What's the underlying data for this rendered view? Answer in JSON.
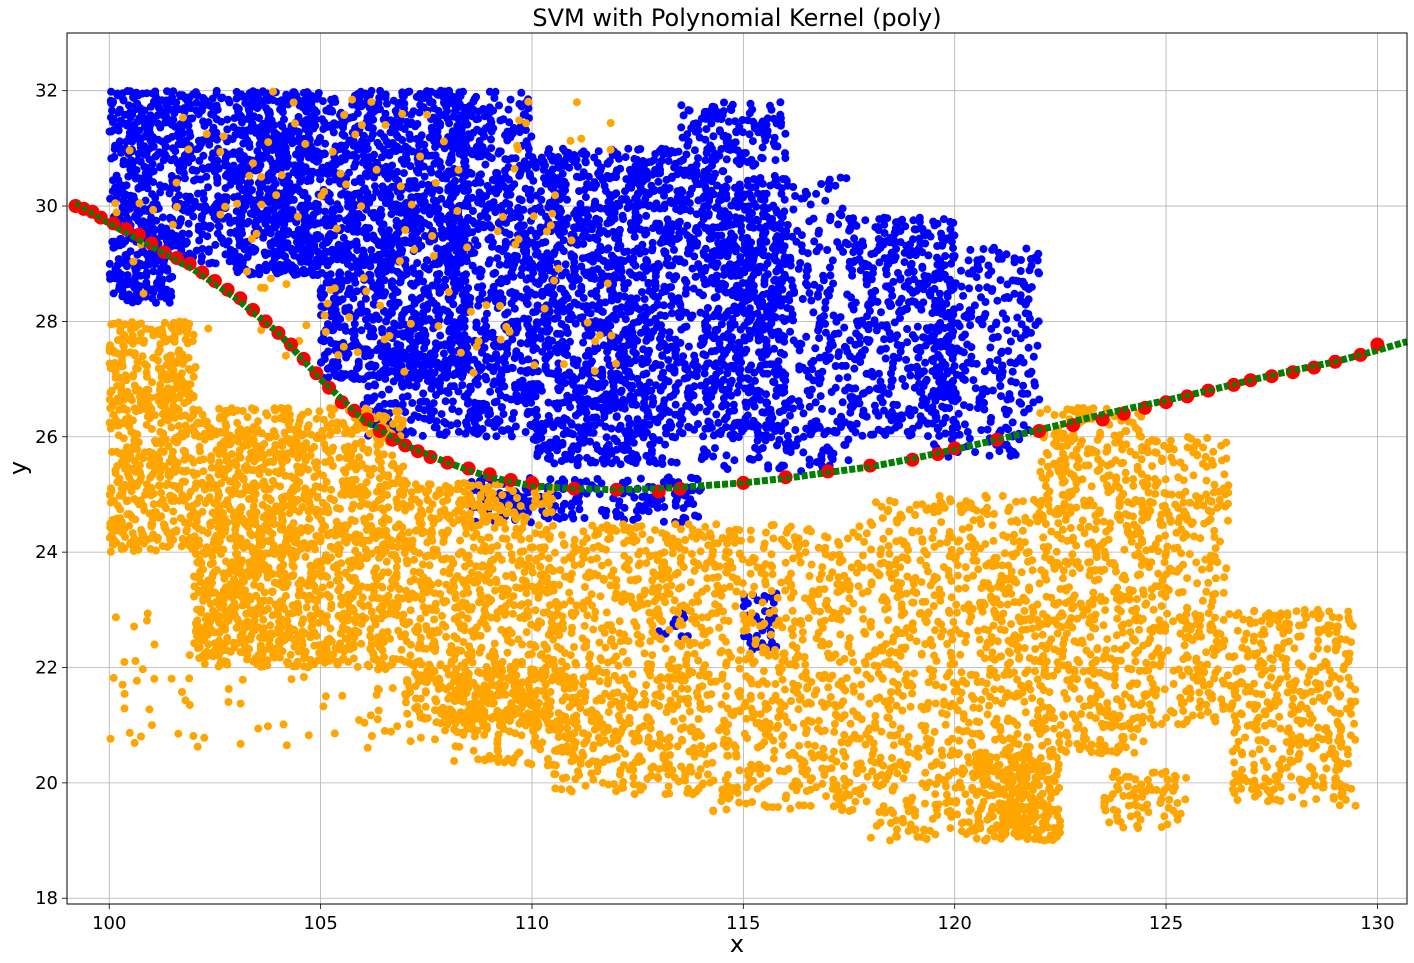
{
  "chart_data": {
    "type": "scatter",
    "title": "SVM with Polynomial Kernel (poly)",
    "xlabel": "x",
    "ylabel": "y",
    "xlim": [
      99.0,
      130.7
    ],
    "ylim": [
      17.9,
      33.0
    ],
    "xticks": [
      100,
      105,
      110,
      115,
      120,
      125,
      130
    ],
    "yticks": [
      18,
      20,
      22,
      24,
      26,
      28,
      30,
      32
    ],
    "grid": true,
    "colors": {
      "class_1": "#0000ff",
      "class_0": "#ffa500",
      "boundary": "#008000",
      "support_points": "#ff0000"
    },
    "series": [
      {
        "role": "class_1",
        "color": "#0000ff",
        "regions": [
          {
            "x": [
              100.0,
              101.5
            ],
            "y": [
              28.3,
              32.0
            ],
            "n": 450
          },
          {
            "x": [
              101.5,
              103.0
            ],
            "y": [
              29.0,
              32.0
            ],
            "n": 300
          },
          {
            "x": [
              103.0,
              105.0
            ],
            "y": [
              28.8,
              32.0
            ],
            "n": 650
          },
          {
            "x": [
              105.0,
              108.5
            ],
            "y": [
              27.0,
              32.0
            ],
            "n": 1300
          },
          {
            "x": [
              106.0,
              108.0
            ],
            "y": [
              26.0,
              27.5
            ],
            "n": 150
          },
          {
            "x": [
              108.0,
              110.0
            ],
            "y": [
              26.0,
              32.0
            ],
            "n": 650
          },
          {
            "x": [
              110.0,
              113.5
            ],
            "y": [
              25.5,
              31.0
            ],
            "n": 1300
          },
          {
            "x": [
              113.5,
              116.0
            ],
            "y": [
              26.0,
              31.8
            ],
            "n": 650
          },
          {
            "x": [
              114.0,
              117.5
            ],
            "y": [
              25.4,
              30.5
            ],
            "n": 550
          },
          {
            "x": [
              117.5,
              120.0
            ],
            "y": [
              26.0,
              29.8
            ],
            "n": 450
          },
          {
            "x": [
              119.5,
              122.0
            ],
            "y": [
              25.6,
              29.3
            ],
            "n": 300
          },
          {
            "x": [
              108.5,
              114.0
            ],
            "y": [
              24.5,
              25.3
            ],
            "n": 200
          },
          {
            "x": [
              115.0,
              115.8
            ],
            "y": [
              22.3,
              23.3
            ],
            "n": 40
          },
          {
            "x": [
              113.0,
              113.7
            ],
            "y": [
              22.5,
              23.0
            ],
            "n": 10
          }
        ]
      },
      {
        "role": "class_0",
        "color": "#ffa500",
        "regions": [
          {
            "x": [
              100.0,
              102.0
            ],
            "y": [
              24.0,
              28.0
            ],
            "n": 550
          },
          {
            "x": [
              102.0,
              104.5
            ],
            "y": [
              22.0,
              26.5
            ],
            "n": 850
          },
          {
            "x": [
              104.5,
              107.0
            ],
            "y": [
              22.0,
              26.5
            ],
            "n": 650
          },
          {
            "x": [
              107.0,
              110.5
            ],
            "y": [
              21.0,
              25.2
            ],
            "n": 750
          },
          {
            "x": [
              108.0,
              111.0
            ],
            "y": [
              20.3,
              22.0
            ],
            "n": 200
          },
          {
            "x": [
              110.5,
              114.0
            ],
            "y": [
              19.8,
              24.5
            ],
            "n": 650
          },
          {
            "x": [
              114.0,
              118.0
            ],
            "y": [
              19.5,
              24.5
            ],
            "n": 650
          },
          {
            "x": [
              118.0,
              122.0
            ],
            "y": [
              19.0,
              25.0
            ],
            "n": 800
          },
          {
            "x": [
              120.5,
              122.5
            ],
            "y": [
              19.0,
              20.5
            ],
            "n": 250
          },
          {
            "x": [
              122.0,
              124.5
            ],
            "y": [
              20.5,
              26.5
            ],
            "n": 650
          },
          {
            "x": [
              124.5,
              126.5
            ],
            "y": [
              21.0,
              26.0
            ],
            "n": 350
          },
          {
            "x": [
              126.5,
              129.5
            ],
            "y": [
              19.6,
              23.0
            ],
            "n": 400
          },
          {
            "x": [
              123.5,
              125.5
            ],
            "y": [
              19.2,
              20.2
            ],
            "n": 80
          },
          {
            "x": [
              100.0,
              110.0
            ],
            "y": [
              20.6,
              23.0
            ],
            "n": 120
          },
          {
            "x": [
              100.0,
              112.0
            ],
            "y": [
              27.0,
              32.0
            ],
            "n": 140
          }
        ]
      }
    ],
    "boundary": {
      "x": [
        99.2,
        100.0,
        101.0,
        102.0,
        103.0,
        104.0,
        105.0,
        106.0,
        107.0,
        108.0,
        109.0,
        110.0,
        111.0,
        112.0,
        113.0,
        114.0,
        115.0,
        116.0,
        117.0,
        118.0,
        119.0,
        120.0,
        121.0,
        122.0,
        123.0,
        124.0,
        125.0,
        126.0,
        127.0,
        128.0,
        129.0,
        130.0,
        130.7
      ],
      "y": [
        30.05,
        29.7,
        29.3,
        28.9,
        28.4,
        27.8,
        27.0,
        26.3,
        25.85,
        25.55,
        25.3,
        25.15,
        25.1,
        25.08,
        25.1,
        25.15,
        25.2,
        25.28,
        25.38,
        25.48,
        25.62,
        25.78,
        25.95,
        26.12,
        26.3,
        26.47,
        26.63,
        26.8,
        26.98,
        27.15,
        27.3,
        27.5,
        27.65
      ]
    },
    "support_points": {
      "x": [
        99.2,
        99.4,
        99.6,
        99.8,
        100.1,
        100.4,
        100.7,
        101.0,
        101.3,
        101.6,
        101.9,
        102.2,
        102.5,
        102.8,
        103.1,
        103.4,
        103.7,
        104.0,
        104.3,
        104.6,
        104.9,
        105.2,
        105.5,
        105.8,
        106.1,
        106.4,
        106.7,
        107.0,
        107.3,
        107.6,
        108.0,
        108.5,
        109.0,
        109.5,
        110.0,
        111.0,
        112.0,
        113.0,
        113.5,
        115.0,
        116.0,
        117.0,
        118.0,
        119.0,
        119.6,
        120.0,
        121.0,
        122.0,
        122.8,
        123.5,
        124.0,
        124.5,
        125.0,
        125.5,
        126.0,
        126.6,
        127.0,
        127.5,
        128.0,
        128.5,
        129.0,
        129.6,
        130.0
      ],
      "y": [
        30.0,
        29.95,
        29.9,
        29.8,
        29.7,
        29.6,
        29.5,
        29.35,
        29.2,
        29.1,
        29.0,
        28.85,
        28.7,
        28.55,
        28.4,
        28.2,
        28.0,
        27.8,
        27.6,
        27.35,
        27.1,
        26.85,
        26.6,
        26.45,
        26.3,
        26.1,
        25.95,
        25.85,
        25.75,
        25.65,
        25.55,
        25.45,
        25.35,
        25.25,
        25.2,
        25.1,
        25.08,
        25.05,
        25.1,
        25.2,
        25.3,
        25.4,
        25.5,
        25.6,
        25.7,
        25.8,
        25.95,
        26.1,
        26.2,
        26.3,
        26.4,
        26.5,
        26.6,
        26.7,
        26.8,
        26.9,
        26.98,
        27.05,
        27.12,
        27.2,
        27.3,
        27.42,
        27.6
      ]
    }
  }
}
